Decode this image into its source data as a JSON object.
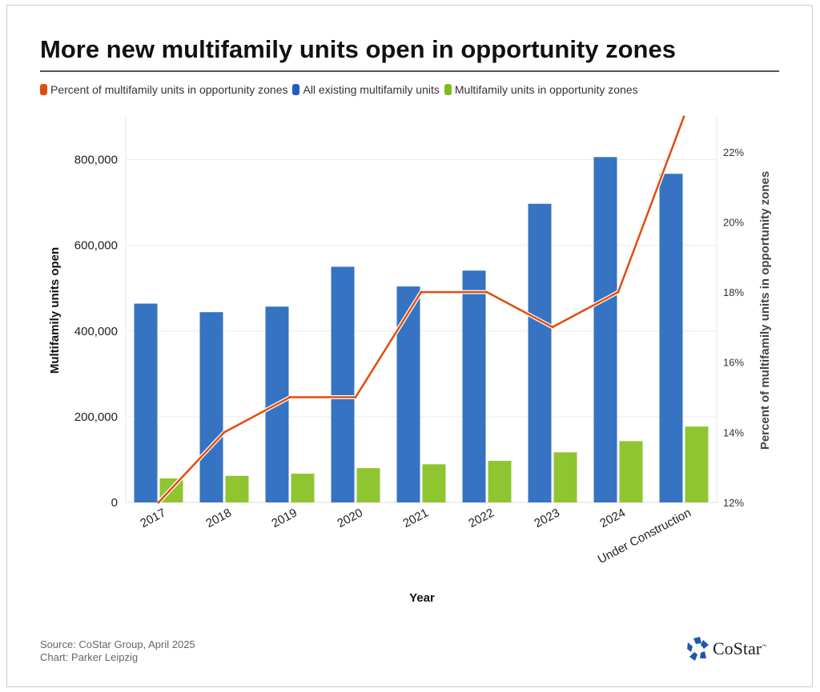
{
  "chart_data": {
    "type": "bar",
    "title": "More new multifamily units open in opportunity zones",
    "xlabel": "Year",
    "ylabel": "Multifamily units open",
    "y2label": "Percent of multifamily units in opportunity zones",
    "categories": [
      "2017",
      "2018",
      "2019",
      "2020",
      "2021",
      "2022",
      "2023",
      "2024",
      "Under Construction"
    ],
    "ylim": [
      0,
      900000
    ],
    "yticks": [
      0,
      200000,
      400000,
      600000,
      800000
    ],
    "ytick_labels": [
      "0",
      "200,000",
      "400,000",
      "600,000",
      "800,000"
    ],
    "y2lim": [
      12,
      23
    ],
    "y2ticks": [
      12,
      14,
      16,
      18,
      20,
      22
    ],
    "y2tick_labels": [
      "12%",
      "14%",
      "16%",
      "18%",
      "20%",
      "22%"
    ],
    "grid": true,
    "legend_placement": "top-left",
    "series": [
      {
        "name": "Percent of multifamily units in opportunity zones",
        "type": "line",
        "axis": "right",
        "color": "#e04e0e",
        "values": [
          12,
          14,
          15,
          15,
          18,
          18,
          17,
          18,
          23
        ]
      },
      {
        "name": "All existing multifamily units",
        "type": "bar",
        "axis": "left",
        "color": "#3673c2",
        "values": [
          464000,
          444000,
          457000,
          550000,
          504000,
          541000,
          697000,
          806000,
          767000
        ]
      },
      {
        "name": "Multifamily units in opportunity zones",
        "type": "bar",
        "axis": "left",
        "color": "#8fc531",
        "values": [
          56000,
          62000,
          67000,
          80000,
          89000,
          97000,
          117000,
          143000,
          177000
        ]
      }
    ]
  },
  "footer": {
    "source": "Source: CoStar Group, April 2025",
    "credit": "Chart: Parker Leipzig"
  },
  "logo": {
    "text": "CoStar",
    "mark": "™"
  }
}
